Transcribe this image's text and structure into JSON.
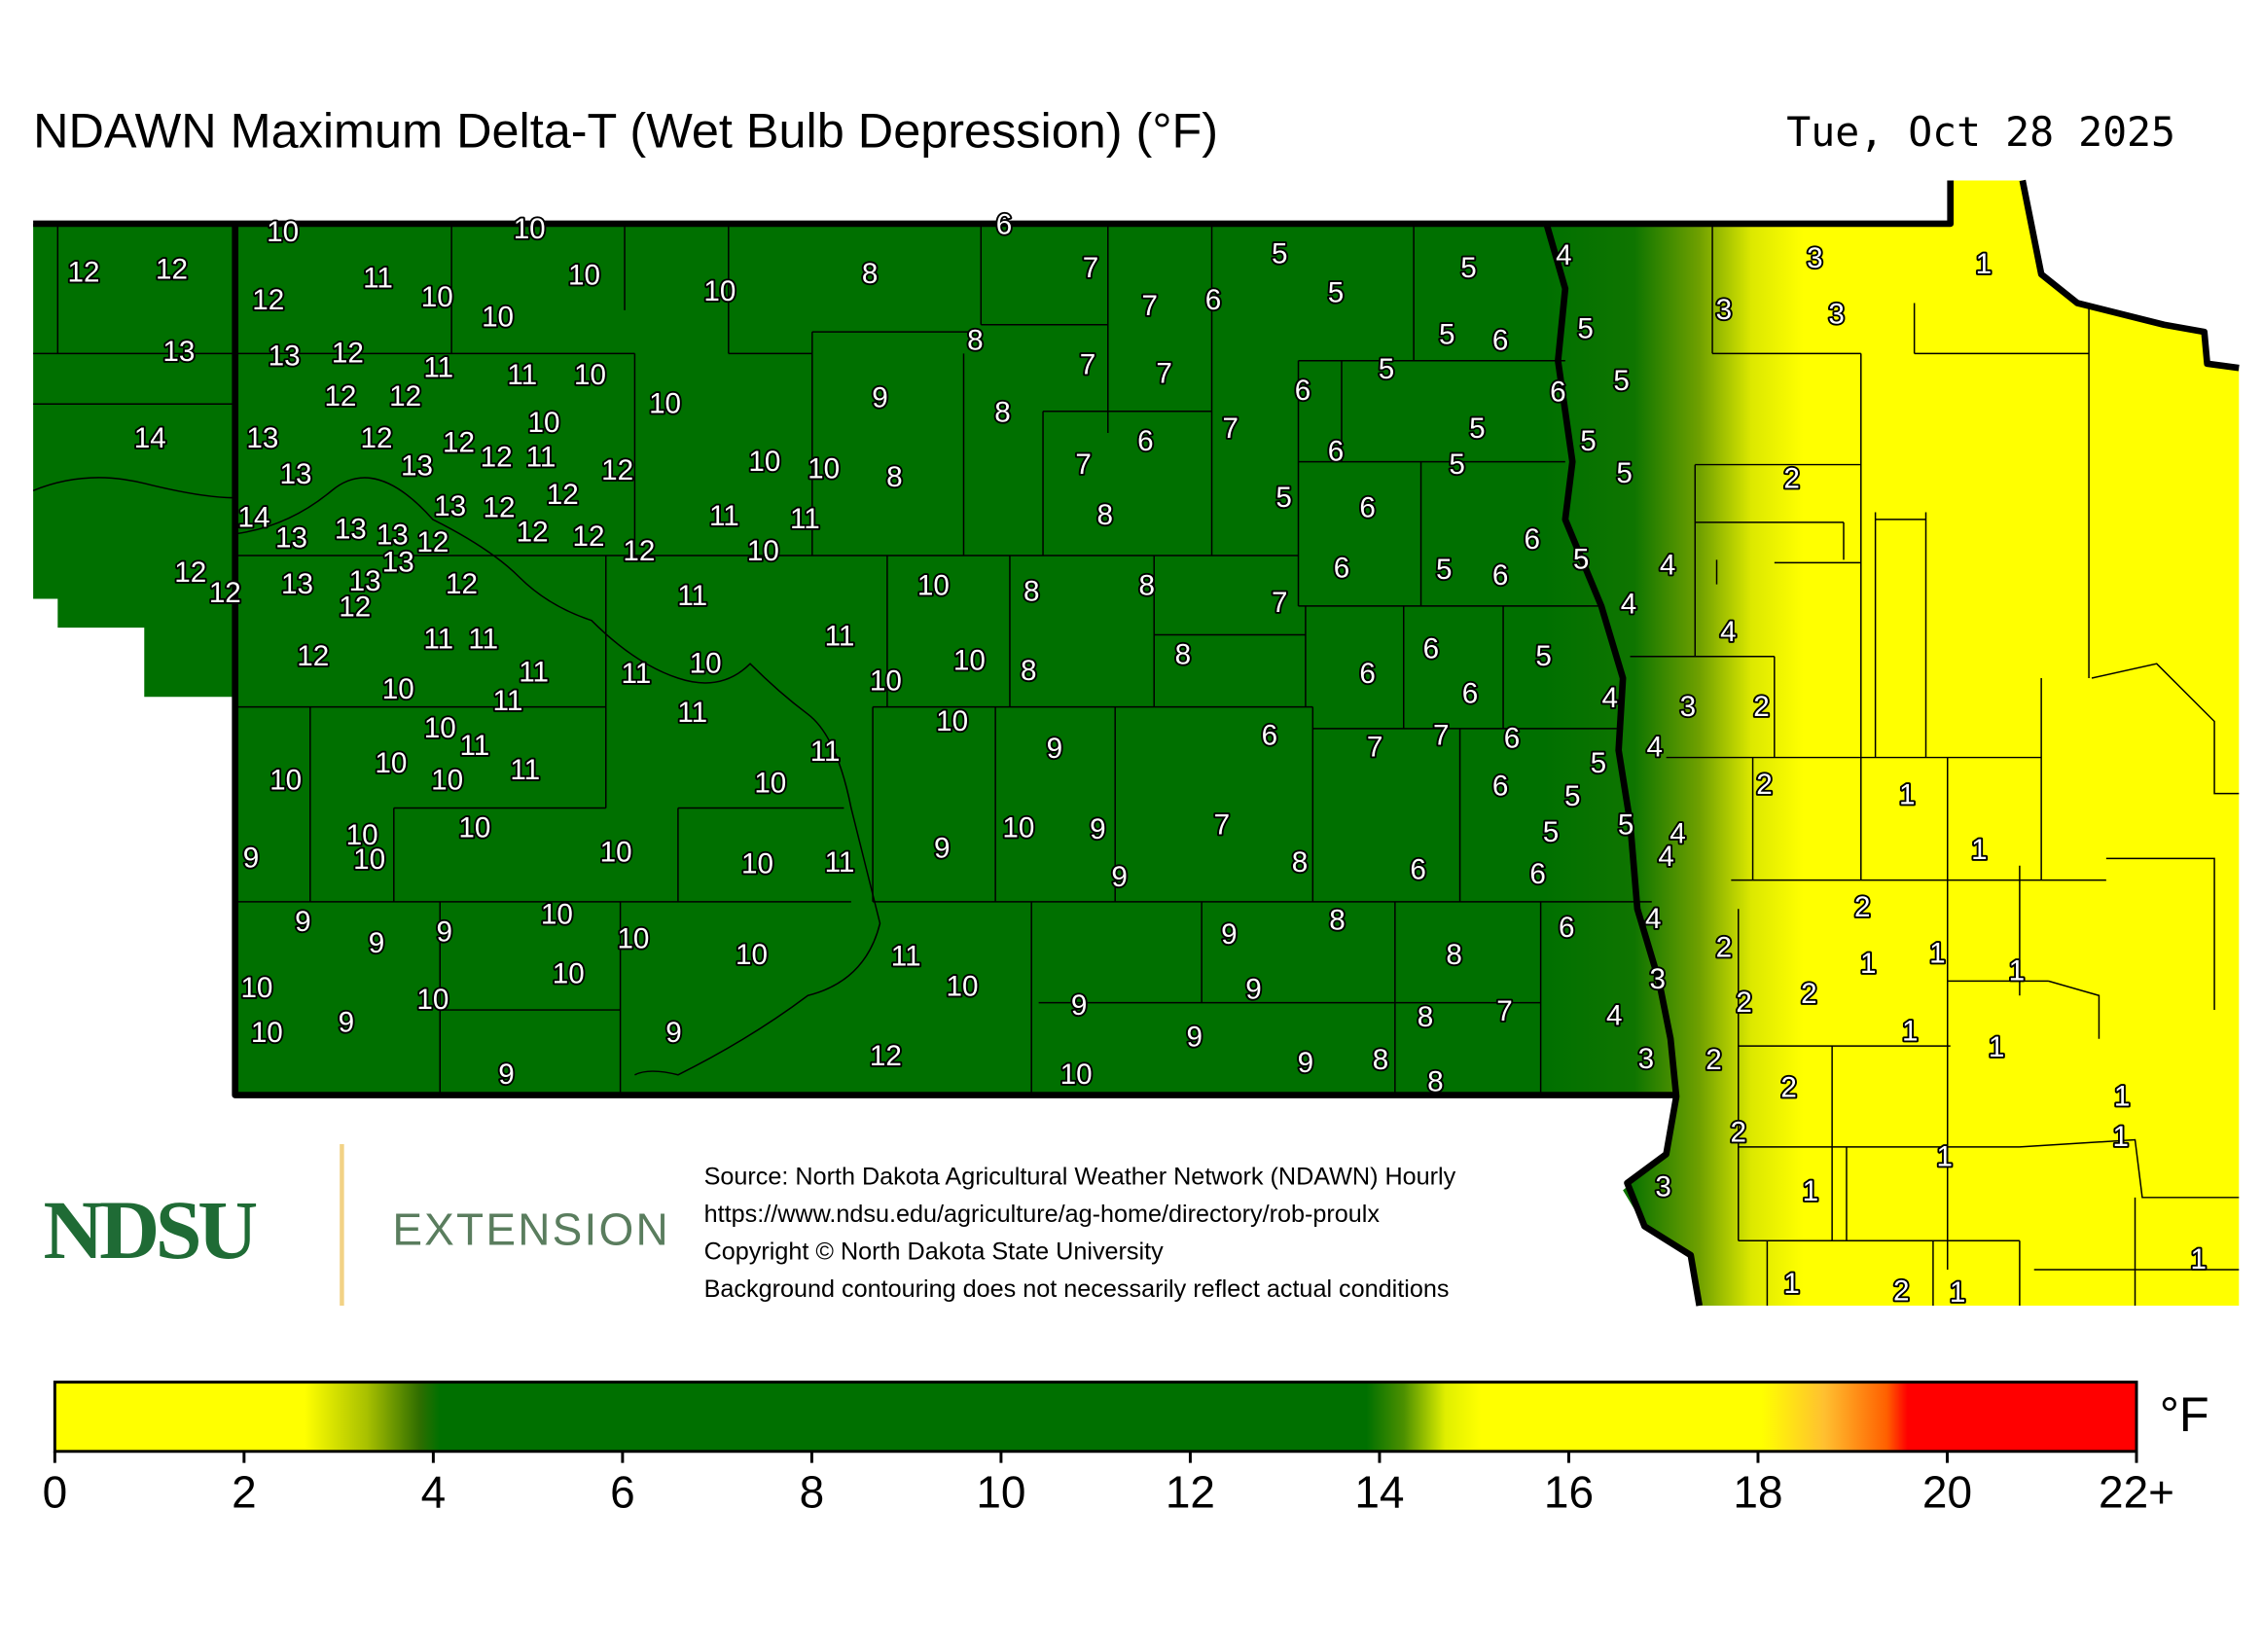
{
  "header": {
    "title": "NDAWN Maximum Delta-T (Wet Bulb Depression) (°F)",
    "date": "Tue, Oct 28 2025"
  },
  "stations": [
    10,
    10,
    6,
    12,
    12,
    11,
    10,
    10,
    10,
    8,
    7,
    5,
    5,
    4,
    3,
    1,
    12,
    10,
    7,
    6,
    5,
    3,
    3,
    13,
    13,
    12,
    8,
    5,
    6,
    5,
    11,
    11,
    10,
    7,
    7,
    5,
    5,
    12,
    12,
    10,
    9,
    6,
    6,
    10,
    8,
    7,
    5,
    14,
    13,
    12,
    12,
    12,
    11,
    13,
    13,
    12,
    10,
    10,
    8,
    7,
    6,
    6,
    5,
    5,
    5,
    2,
    13,
    12,
    12,
    5,
    6,
    8,
    14,
    13,
    13,
    13,
    12,
    12,
    12,
    12,
    11,
    11,
    10,
    6,
    13,
    12,
    12,
    13,
    13,
    12,
    12,
    11,
    10,
    8,
    8,
    7,
    6,
    5,
    6,
    5,
    4,
    4,
    11,
    11,
    12,
    11,
    4,
    8,
    6,
    5,
    11,
    11,
    10,
    10,
    10,
    8,
    6,
    10,
    11,
    11,
    6,
    4,
    3,
    2,
    10,
    11,
    10,
    6,
    7,
    7,
    6,
    5,
    4,
    10,
    11,
    11,
    9,
    10,
    10,
    10,
    6,
    5,
    2,
    1,
    10,
    10,
    10,
    9,
    7,
    5,
    5,
    4,
    9,
    10,
    10,
    10,
    11,
    9,
    8,
    6,
    6,
    4,
    1,
    9,
    9,
    9,
    9,
    10,
    10,
    8,
    9,
    6,
    4,
    2,
    10,
    11,
    8,
    2,
    1,
    1,
    1,
    10,
    10,
    10,
    10,
    9,
    3,
    2,
    2,
    10,
    9,
    9,
    9,
    8,
    7,
    4,
    1,
    1,
    12,
    9,
    9,
    8,
    3,
    2,
    9,
    10,
    8,
    2,
    1,
    2,
    1,
    1,
    3,
    1,
    1,
    1,
    2,
    1
  ],
  "logo": {
    "name": "NDSU",
    "unit": "EXTENSION"
  },
  "source": [
    "Source: North Dakota Agricultural Weather Network (NDAWN) Hourly",
    "https://www.ndsu.edu/agriculture/ag-home/directory/rob-proulx",
    "Copyright © North Dakota State University",
    "Background contouring does not necessarily reflect actual conditions"
  ],
  "legend": {
    "unit": "°F",
    "lim": [
      0,
      22
    ],
    "ticks": [
      0,
      2,
      4,
      6,
      8,
      10,
      12,
      14,
      16,
      18,
      20,
      {
        "value": 22,
        "label": "22+"
      }
    ]
  }
}
